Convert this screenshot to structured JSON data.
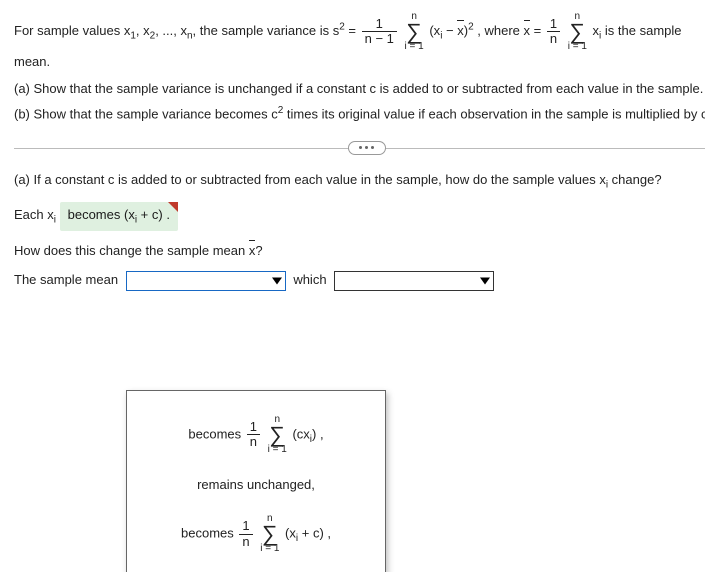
{
  "intro": {
    "pre": "For sample values x",
    "s1": "1",
    "c1": ", x",
    "s2": "2",
    "c2": ", ..., x",
    "sn": "n",
    "mid": ", the sample variance is s",
    "sq": "2",
    "eq": " = ",
    "where": ", where ",
    "isSample": " is the sample",
    "mean": "mean."
  },
  "frac1": {
    "num": "1",
    "den": "n − 1"
  },
  "sum1": {
    "top": "n",
    "sym": "∑",
    "bot": "i = 1"
  },
  "term1a": "(x",
  "term1b": "i",
  "term1c": " − ",
  "term1d": "x",
  "term1e": ")",
  "term1sq": "2",
  "xbar": "x",
  "eq2": " = ",
  "frac2": {
    "num": "1",
    "den": "n"
  },
  "sum2": {
    "top": "n",
    "sym": "∑",
    "bot": "i = 1"
  },
  "term2a": " x",
  "term2b": "i",
  "problem": {
    "a": "(a) Show that the sample variance is unchanged if a constant c is added to or subtracted from each value in the sample.",
    "b": "(b) Show that the sample variance becomes c",
    "b2": "2",
    "b3": " times its original value if each observation in the sample is multiplied by c."
  },
  "partA": {
    "q": "(a) If a constant c is added to or subtracted from each value in the sample, how do the sample values x",
    "qi": "i",
    "qend": " change?",
    "lineEach": "Each x",
    "lineEachI": "i",
    "becomes": " becomes ",
    "pillA": "(x",
    "pillB": "i",
    "pillC": " + c)",
    "pillDot": " .",
    "howChange": "How does this change the sample mean ",
    "xbar": "x",
    "qmark": "?",
    "sampleMean": "The sample mean",
    "which": "which"
  },
  "dd": {
    "opt1a": "becomes ",
    "f1": {
      "num": "1",
      "den": "n"
    },
    "s1": {
      "top": "n",
      "sym": "∑",
      "bot": "i = 1"
    },
    "o1b": "(cx",
    "o1c": "i",
    "o1d": ") ,",
    "opt2": "remains unchanged,",
    "opt3a": "becomes ",
    "f3": {
      "num": "1",
      "den": "n"
    },
    "s3": {
      "top": "n",
      "sym": "∑",
      "bot": "i = 1"
    },
    "o3b": "(x",
    "o3c": "i",
    "o3d": " + c) ,"
  }
}
